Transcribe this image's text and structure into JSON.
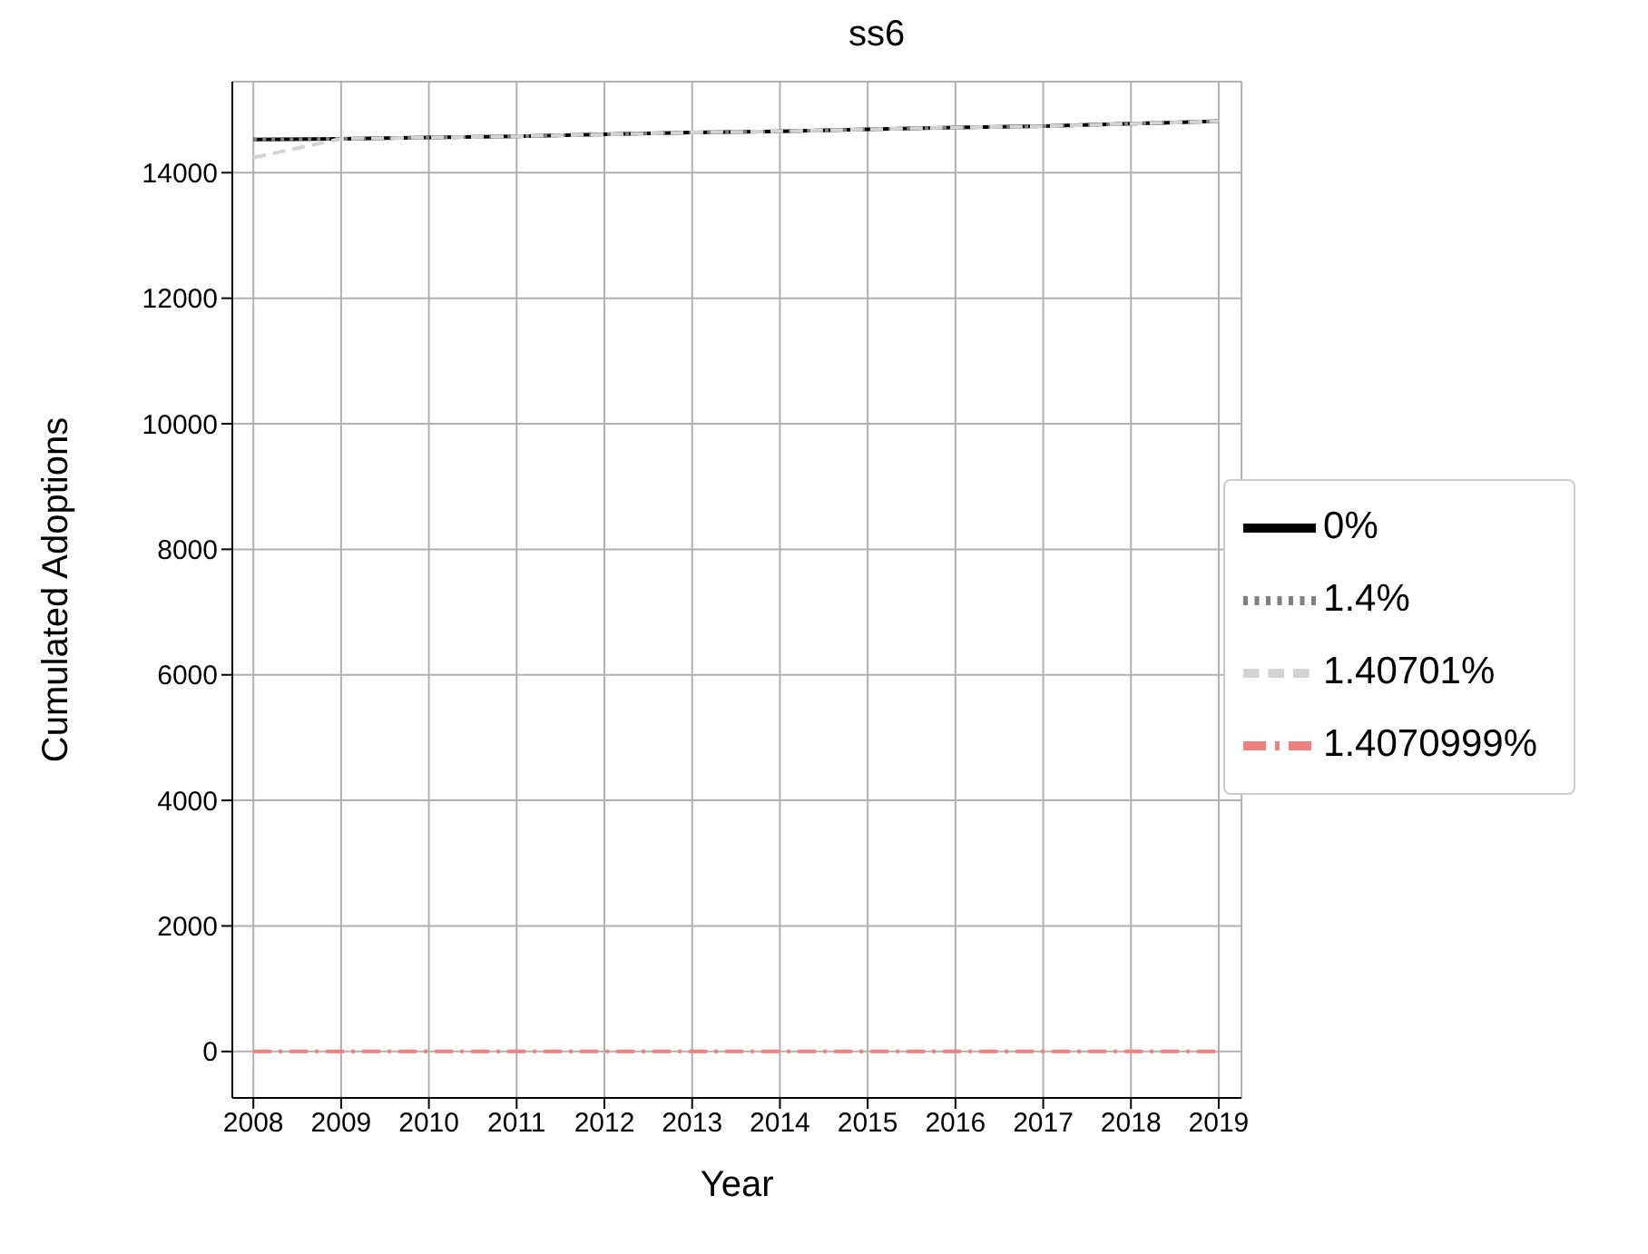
{
  "chart_data": {
    "type": "line",
    "title": "ss6",
    "xlabel": "Year",
    "ylabel": "Cumulated Adoptions",
    "x": [
      2008,
      2009,
      2010,
      2011,
      2012,
      2013,
      2014,
      2015,
      2016,
      2017,
      2018,
      2019
    ],
    "xlim": [
      2007.76,
      2019.26
    ],
    "xticks": [
      2008,
      2009,
      2010,
      2011,
      2012,
      2013,
      2014,
      2015,
      2016,
      2017,
      2018,
      2019
    ],
    "ylim": [
      -740,
      15450
    ],
    "yticks": [
      0,
      2000,
      4000,
      6000,
      8000,
      10000,
      12000,
      14000
    ],
    "grid": true,
    "legend": "right",
    "series": [
      {
        "name": "0%",
        "color": "#000000",
        "line_style": "solid",
        "values": [
          14530,
          14540,
          14560,
          14580,
          14610,
          14640,
          14660,
          14690,
          14720,
          14740,
          14780,
          14820
        ]
      },
      {
        "name": "1.4%",
        "color": "#808080",
        "line_style": "dotted",
        "values": [
          14530,
          14540,
          14560,
          14580,
          14610,
          14640,
          14660,
          14690,
          14720,
          14740,
          14780,
          14820
        ]
      },
      {
        "name": "1.40701%",
        "color": "#d3d3d3",
        "line_style": "dashed",
        "values": [
          14240,
          14540,
          14560,
          14580,
          14610,
          14640,
          14660,
          14690,
          14720,
          14740,
          14780,
          14820
        ]
      },
      {
        "name": "1.4070999%",
        "color": "#f08080",
        "line_style": "dashdot",
        "values": [
          0,
          0,
          0,
          0,
          0,
          0,
          0,
          0,
          0,
          0,
          0,
          0
        ]
      }
    ]
  }
}
